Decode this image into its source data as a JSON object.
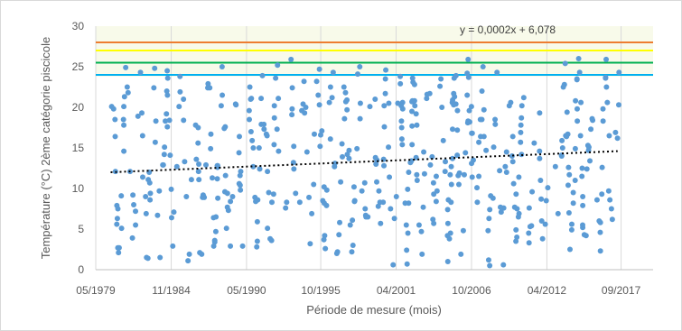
{
  "chart_data": {
    "type": "scatter",
    "xlabel": "Période de mesure (mois)",
    "ylabel": "Température (°C) 2ème catégorie piscicole",
    "ylim": [
      0,
      30
    ],
    "xlim": [
      "1979-05-01",
      "2020-01-01"
    ],
    "x_ticks": [
      "05/1979",
      "11/1984",
      "05/1990",
      "10/1995",
      "04/2001",
      "10/2006",
      "04/2012",
      "09/2017"
    ],
    "y_ticks": [
      0,
      5,
      10,
      15,
      20,
      25,
      30
    ],
    "grid": "vertical",
    "marker_color": "#5b9bd5",
    "trendline": {
      "equation": "y = 0,0002x + 6,078",
      "style": "dotted",
      "color": "#000000",
      "start": {
        "x": "1980-06-01",
        "y": 12.0
      },
      "end": {
        "x": "2017-06-01",
        "y": 14.6
      }
    },
    "reference_lines": [
      {
        "y": 28,
        "color": "#ed7d31"
      },
      {
        "y": 27,
        "color": "#ffff00"
      },
      {
        "y": 25.5,
        "color": "#00b050"
      },
      {
        "y": 24,
        "color": "#00b0f0"
      }
    ],
    "points": []
  }
}
